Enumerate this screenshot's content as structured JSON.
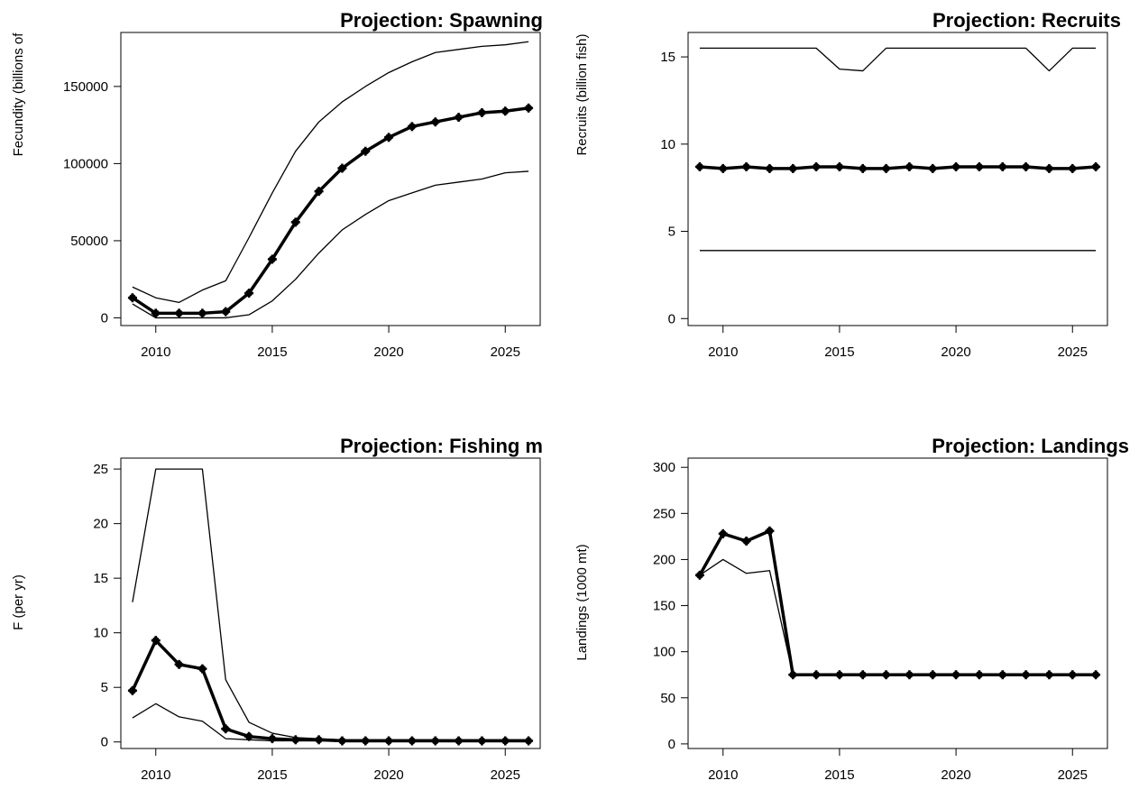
{
  "chart_data": [
    {
      "type": "line",
      "title": "Projection:  Spawning",
      "xlabel": "",
      "ylabel": "Fecundity (billions of",
      "xlim": [
        2008.5,
        2026.5
      ],
      "ylim": [
        -5000,
        185000
      ],
      "xticks": [
        "2010",
        "2015",
        "2020",
        "2025"
      ],
      "yticks": [
        "0",
        "50000",
        "100000",
        "150000"
      ],
      "x": [
        2009,
        2010,
        2011,
        2012,
        2013,
        2014,
        2015,
        2016,
        2017,
        2018,
        2019,
        2020,
        2021,
        2022,
        2023,
        2024,
        2025,
        2026
      ],
      "series": [
        {
          "style": "bold-marker",
          "values": [
            13000,
            3000,
            3000,
            3000,
            4000,
            16000,
            38000,
            62000,
            82000,
            97000,
            108000,
            117000,
            124000,
            127000,
            130000,
            133000,
            134000,
            136000
          ]
        },
        {
          "style": "thin",
          "values": [
            20000,
            13000,
            10000,
            18000,
            24000,
            52000,
            81000,
            108000,
            127000,
            140000,
            150000,
            159000,
            166000,
            172000,
            174000,
            176000,
            177000,
            179000
          ]
        },
        {
          "style": "thin",
          "values": [
            9000,
            0,
            0,
            0,
            0,
            2000,
            11000,
            25000,
            42000,
            57000,
            67000,
            76000,
            81000,
            86000,
            88000,
            90000,
            94000,
            95000
          ]
        }
      ]
    },
    {
      "type": "line",
      "title": "Projection:  Recruits",
      "xlabel": "",
      "ylabel": "Recruits (billion fish)",
      "xlim": [
        2008.5,
        2026.5
      ],
      "ylim": [
        -0.4,
        16.4
      ],
      "xticks": [
        "2010",
        "2015",
        "2020",
        "2025"
      ],
      "yticks": [
        "0",
        "5",
        "10",
        "15"
      ],
      "x": [
        2009,
        2010,
        2011,
        2012,
        2013,
        2014,
        2015,
        2016,
        2017,
        2018,
        2019,
        2020,
        2021,
        2022,
        2023,
        2024,
        2025,
        2026
      ],
      "series": [
        {
          "style": "bold-marker",
          "values": [
            8.7,
            8.6,
            8.7,
            8.6,
            8.6,
            8.7,
            8.7,
            8.6,
            8.6,
            8.7,
            8.6,
            8.7,
            8.7,
            8.7,
            8.7,
            8.6,
            8.6,
            8.7
          ]
        },
        {
          "style": "thin",
          "values": [
            15.5,
            15.5,
            15.5,
            15.5,
            15.5,
            15.5,
            14.3,
            14.2,
            15.5,
            15.5,
            15.5,
            15.5,
            15.5,
            15.5,
            15.5,
            14.2,
            15.5,
            15.5
          ]
        },
        {
          "style": "thin",
          "values": [
            3.9,
            3.9,
            3.9,
            3.9,
            3.9,
            3.9,
            3.9,
            3.9,
            3.9,
            3.9,
            3.9,
            3.9,
            3.9,
            3.9,
            3.9,
            3.9,
            3.9,
            3.9
          ]
        }
      ]
    },
    {
      "type": "line",
      "title": "Projection:  Fishing m",
      "xlabel": "",
      "ylabel": "F (per yr)",
      "xlim": [
        2008.5,
        2026.5
      ],
      "ylim": [
        -0.6,
        26
      ],
      "xticks": [
        "2010",
        "2015",
        "2020",
        "2025"
      ],
      "yticks": [
        "0",
        "5",
        "10",
        "15",
        "20",
        "25"
      ],
      "x": [
        2009,
        2010,
        2011,
        2012,
        2013,
        2014,
        2015,
        2016,
        2017,
        2018,
        2019,
        2020,
        2021,
        2022,
        2023,
        2024,
        2025,
        2026
      ],
      "series": [
        {
          "style": "bold-marker",
          "values": [
            4.7,
            9.3,
            7.1,
            6.7,
            1.2,
            0.5,
            0.3,
            0.2,
            0.2,
            0.1,
            0.1,
            0.1,
            0.1,
            0.1,
            0.1,
            0.1,
            0.1,
            0.1
          ]
        },
        {
          "style": "thin",
          "values": [
            12.8,
            25.0,
            25.0,
            25.0,
            5.7,
            1.8,
            0.8,
            0.4,
            0.3,
            0.2,
            0.2,
            0.2,
            0.2,
            0.2,
            0.2,
            0.2,
            0.2,
            0.2
          ]
        },
        {
          "style": "thin",
          "values": [
            2.2,
            3.5,
            2.3,
            1.9,
            0.3,
            0.2,
            0.1,
            0.1,
            0.1,
            0.1,
            0.1,
            0.1,
            0.1,
            0.1,
            0.1,
            0.1,
            0.1,
            0.1
          ]
        }
      ]
    },
    {
      "type": "line",
      "title": "Projection:  Landings",
      "xlabel": "",
      "ylabel": "Landings (1000 mt)",
      "xlim": [
        2008.5,
        2026.5
      ],
      "ylim": [
        -5,
        310
      ],
      "xticks": [
        "2010",
        "2015",
        "2020",
        "2025"
      ],
      "yticks": [
        "0",
        "50",
        "100",
        "150",
        "200",
        "250",
        "300"
      ],
      "x": [
        2009,
        2010,
        2011,
        2012,
        2013,
        2014,
        2015,
        2016,
        2017,
        2018,
        2019,
        2020,
        2021,
        2022,
        2023,
        2024,
        2025,
        2026
      ],
      "series": [
        {
          "style": "bold-marker",
          "values": [
            183,
            228,
            220,
            231,
            75,
            75,
            75,
            75,
            75,
            75,
            75,
            75,
            75,
            75,
            75,
            75,
            75,
            75
          ]
        },
        {
          "style": "thin",
          "values": [
            183,
            200,
            185,
            188,
            75,
            75,
            75,
            75,
            75,
            75,
            75,
            75,
            75,
            75,
            75,
            75,
            75,
            75
          ]
        }
      ]
    }
  ]
}
